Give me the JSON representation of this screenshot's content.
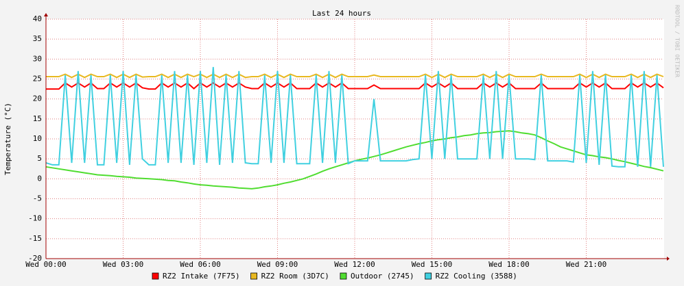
{
  "chart_data": {
    "type": "line",
    "title": "Last 24 hours",
    "y_label": "Temperature (°C)",
    "watermark": "RRDTOOL / TOBI OETIKER",
    "x": [
      0,
      0.25,
      0.5,
      0.75,
      1,
      1.25,
      1.5,
      1.75,
      2,
      2.25,
      2.5,
      2.75,
      3,
      3.25,
      3.5,
      3.75,
      4,
      4.25,
      4.5,
      4.75,
      5,
      5.25,
      5.5,
      5.75,
      6,
      6.25,
      6.5,
      6.75,
      7,
      7.25,
      7.5,
      7.75,
      8,
      8.25,
      8.5,
      8.75,
      9,
      9.25,
      9.5,
      9.75,
      10,
      10.25,
      10.5,
      10.75,
      11,
      11.25,
      11.5,
      11.75,
      12,
      12.25,
      12.5,
      12.75,
      13,
      13.25,
      13.5,
      13.75,
      14,
      14.25,
      14.5,
      14.75,
      15,
      15.25,
      15.5,
      15.75,
      16,
      16.25,
      16.5,
      16.75,
      17,
      17.25,
      17.5,
      17.75,
      18,
      18.25,
      18.5,
      18.75,
      19,
      19.25,
      19.5,
      19.75,
      20,
      20.25,
      20.5,
      20.75,
      21,
      21.25,
      21.5,
      21.75,
      22,
      22.25,
      22.5,
      22.75,
      23,
      23.25,
      23.5,
      23.75,
      24
    ],
    "xlim": [
      0,
      24
    ],
    "xticks": [
      {
        "value": 0,
        "label": "Wed 00:00"
      },
      {
        "value": 3,
        "label": "Wed 03:00"
      },
      {
        "value": 6,
        "label": "Wed 06:00"
      },
      {
        "value": 9,
        "label": "Wed 09:00"
      },
      {
        "value": 12,
        "label": "Wed 12:00"
      },
      {
        "value": 15,
        "label": "Wed 15:00"
      },
      {
        "value": 18,
        "label": "Wed 18:00"
      },
      {
        "value": 21,
        "label": "Wed 21:00"
      }
    ],
    "ylim": [
      -20,
      40
    ],
    "yticks": [
      -20,
      -15,
      -10,
      -5,
      0,
      5,
      10,
      15,
      20,
      25,
      30,
      35,
      40
    ],
    "grid": true,
    "series": [
      {
        "name": "RZ2 Intake (7F75)",
        "color": "#ff0000",
        "values": [
          22.5,
          22.5,
          22.5,
          24,
          23,
          24,
          23,
          24,
          22.6,
          22.6,
          24,
          23,
          24,
          23,
          24,
          22.8,
          22.5,
          22.5,
          24,
          23,
          24,
          23,
          24,
          22.6,
          24,
          23,
          24,
          23,
          24,
          23,
          24,
          23,
          22.6,
          22.6,
          24,
          23,
          24,
          23,
          24,
          22.6,
          22.6,
          22.6,
          24,
          23,
          24,
          23,
          24,
          22.6,
          22.6,
          22.6,
          22.6,
          23.5,
          22.6,
          22.6,
          22.6,
          22.6,
          22.6,
          22.6,
          22.6,
          24,
          23,
          24,
          23,
          24,
          22.6,
          22.6,
          22.6,
          22.6,
          24,
          23,
          24,
          23,
          24,
          22.6,
          22.6,
          22.6,
          22.6,
          24,
          22.6,
          22.6,
          22.6,
          22.6,
          22.6,
          24,
          23,
          24,
          23,
          24,
          22.6,
          22.6,
          22.6,
          24,
          23,
          24,
          23,
          24,
          22.8
        ]
      },
      {
        "name": "RZ2 Room (3D7C)",
        "color": "#e8b820",
        "values": [
          25.6,
          25.6,
          25.6,
          26.2,
          25.4,
          26.2,
          25.4,
          26.2,
          25.6,
          25.6,
          26.2,
          25.4,
          26.2,
          25.4,
          26.2,
          25.5,
          25.6,
          25.6,
          26.2,
          25.4,
          26.2,
          25.4,
          26.2,
          25.6,
          26.2,
          25.4,
          26.2,
          25.4,
          26.2,
          25.4,
          26.2,
          25.4,
          25.6,
          25.6,
          26.2,
          25.4,
          26.2,
          25.4,
          26.2,
          25.6,
          25.6,
          25.6,
          26.2,
          25.4,
          26.2,
          25.4,
          26.2,
          25.6,
          25.6,
          25.6,
          25.6,
          26,
          25.6,
          25.6,
          25.6,
          25.6,
          25.6,
          25.6,
          25.6,
          26.2,
          25.4,
          26.2,
          25.4,
          26.2,
          25.6,
          25.6,
          25.6,
          25.6,
          26.2,
          25.4,
          26.2,
          25.4,
          26.2,
          25.6,
          25.6,
          25.6,
          25.6,
          26.2,
          25.6,
          25.6,
          25.6,
          25.6,
          25.6,
          26.2,
          25.4,
          26.2,
          25.4,
          26.2,
          25.6,
          25.6,
          25.6,
          26.2,
          25.4,
          26.2,
          25.4,
          26.2,
          25.6
        ]
      },
      {
        "name": "Outdoor (2745)",
        "color": "#50dd30",
        "values": [
          3,
          2.75,
          2.5,
          2.25,
          2,
          1.75,
          1.5,
          1.25,
          1,
          0.9,
          0.8,
          0.6,
          0.5,
          0.4,
          0.2,
          0.1,
          0,
          -0.1,
          -0.2,
          -0.4,
          -0.5,
          -0.8,
          -1,
          -1.3,
          -1.5,
          -1.6,
          -1.8,
          -1.9,
          -2,
          -2.1,
          -2.3,
          -2.4,
          -2.5,
          -2.3,
          -2,
          -1.8,
          -1.5,
          -1.1,
          -0.8,
          -0.4,
          0,
          0.6,
          1.2,
          1.9,
          2.5,
          3,
          3.5,
          4,
          4.5,
          4.9,
          5.2,
          5.6,
          6,
          6.5,
          7,
          7.5,
          8,
          8.4,
          8.8,
          9.1,
          9.5,
          9.8,
          10,
          10.3,
          10.5,
          10.8,
          11,
          11.3,
          11.5,
          11.6,
          11.8,
          11.9,
          12,
          11.8,
          11.5,
          11.3,
          11,
          10.3,
          9.5,
          8.8,
          8,
          7.5,
          7,
          6.5,
          6,
          5.8,
          5.5,
          5.3,
          5,
          4.6,
          4.3,
          3.9,
          3.5,
          3.1,
          2.8,
          2.4,
          2
        ]
      },
      {
        "name": "RZ2 Cooling (3588)",
        "color": "#40d0e0",
        "values": [
          4,
          3.5,
          3.5,
          26,
          4,
          27,
          4,
          26,
          3.5,
          3.5,
          26,
          4,
          27,
          3.5,
          26,
          5,
          3.5,
          3.5,
          26,
          4,
          27,
          4,
          26,
          3.5,
          27,
          4,
          28,
          3.5,
          26,
          4,
          27,
          4,
          3.8,
          3.8,
          26,
          4,
          27,
          4,
          26,
          3.8,
          3.8,
          3.8,
          26,
          4,
          27,
          4,
          26,
          3.8,
          4.5,
          4.5,
          4.5,
          20,
          4.5,
          4.5,
          4.5,
          4.5,
          4.5,
          4.8,
          5,
          26,
          5,
          27,
          5,
          26,
          5,
          5,
          5,
          5,
          26,
          5,
          27,
          5,
          26,
          5,
          5,
          5,
          4.8,
          26,
          4.5,
          4.5,
          4.5,
          4.5,
          4.2,
          26,
          4,
          27,
          3.5,
          26,
          3.2,
          3,
          3,
          26,
          3,
          27,
          3,
          26,
          3
        ]
      }
    ]
  }
}
